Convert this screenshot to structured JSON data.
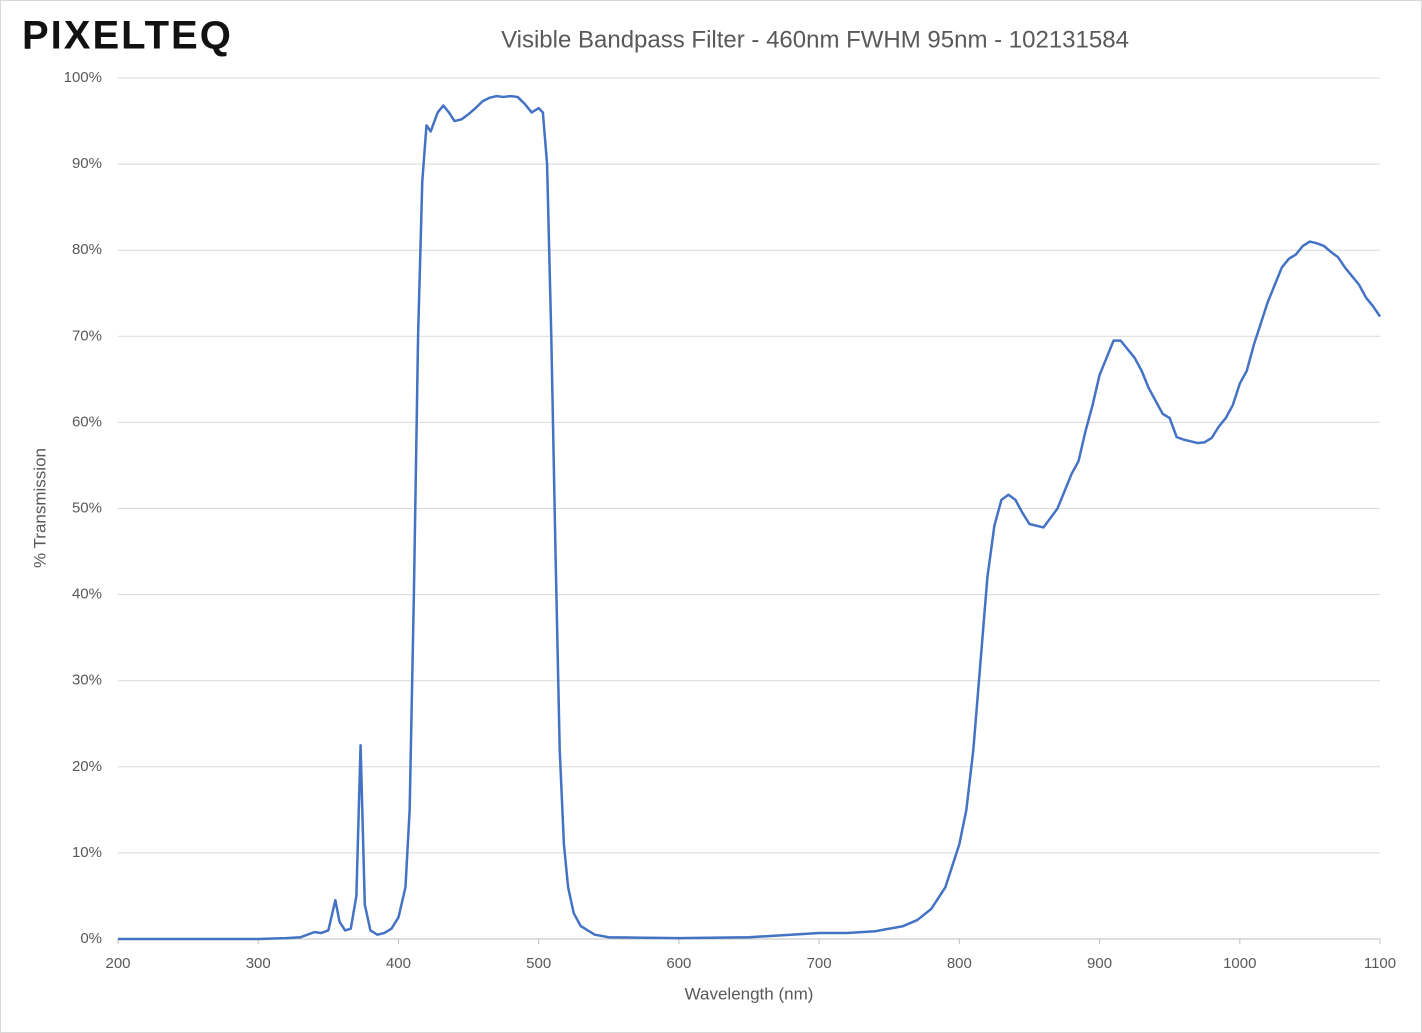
{
  "chart_data": {
    "type": "line",
    "logo": "PIXELTEQ",
    "title": "Visible Bandpass Filter - 460nm FWHM 95nm - 102131584",
    "x_label": "Wavelength (nm)",
    "y_label": "% Transmission",
    "xlim": [
      200,
      1100
    ],
    "xticks": [
      200,
      300,
      400,
      500,
      600,
      700,
      800,
      900,
      1000,
      1100
    ],
    "ylim": [
      0,
      100
    ],
    "yticks": [
      {
        "value": 0,
        "label": "0%"
      },
      {
        "value": 10,
        "label": "10%"
      },
      {
        "value": 20,
        "label": "20%"
      },
      {
        "value": 30,
        "label": "30%"
      },
      {
        "value": 40,
        "label": "40%"
      },
      {
        "value": 50,
        "label": "50%"
      },
      {
        "value": 60,
        "label": "60%"
      },
      {
        "value": 70,
        "label": "70%"
      },
      {
        "value": 80,
        "label": "80%"
      },
      {
        "value": 90,
        "label": "90%"
      },
      {
        "value": 100,
        "label": "100%"
      }
    ],
    "grid": true,
    "x": [
      200,
      250,
      300,
      320,
      330,
      340,
      345,
      350,
      355,
      358,
      362,
      366,
      370,
      373,
      376,
      380,
      385,
      390,
      395,
      400,
      405,
      408,
      411,
      414,
      417,
      420,
      423,
      428,
      432,
      436,
      440,
      445,
      450,
      455,
      460,
      465,
      470,
      475,
      480,
      485,
      490,
      495,
      500,
      503,
      506,
      509,
      512,
      515,
      518,
      521,
      525,
      530,
      540,
      550,
      600,
      650,
      680,
      700,
      720,
      740,
      760,
      770,
      780,
      790,
      800,
      805,
      810,
      815,
      820,
      825,
      830,
      835,
      840,
      845,
      850,
      860,
      870,
      880,
      885,
      890,
      895,
      900,
      905,
      910,
      915,
      920,
      925,
      930,
      935,
      940,
      945,
      950,
      955,
      960,
      965,
      970,
      975,
      980,
      985,
      990,
      995,
      1000,
      1005,
      1010,
      1015,
      1020,
      1025,
      1030,
      1035,
      1040,
      1045,
      1050,
      1055,
      1060,
      1065,
      1070,
      1075,
      1080,
      1085,
      1090,
      1095,
      1100
    ],
    "series": [
      {
        "color": "#4472c4",
        "values": [
          0,
          0,
          0,
          0.1,
          0.2,
          0.8,
          0.7,
          1.0,
          4.5,
          2,
          1,
          1.2,
          5,
          22.5,
          4,
          1,
          0.5,
          0.7,
          1.2,
          2.5,
          6,
          15,
          40,
          70,
          88,
          94.5,
          93.8,
          96,
          96.8,
          96,
          95,
          95.2,
          95.8,
          96.5,
          97.3,
          97.7,
          97.9,
          97.8,
          97.9,
          97.8,
          97,
          96,
          96.5,
          96,
          90,
          70,
          45,
          22,
          11,
          6,
          3,
          1.5,
          0.5,
          0.2,
          0.1,
          0.2,
          0.5,
          0.7,
          0.7,
          0.9,
          1.5,
          2.2,
          3.5,
          6,
          11,
          15,
          22,
          32,
          42,
          48,
          51,
          51.6,
          51,
          49.5,
          48.2,
          47.8,
          50,
          54,
          55.5,
          59,
          62,
          65.5,
          67.5,
          69.5,
          69.5,
          68.5,
          67.5,
          66,
          64,
          62.5,
          61,
          60.5,
          58.3,
          58,
          57.8,
          57.6,
          57.7,
          58.2,
          59.5,
          60.5,
          62,
          64.5,
          66,
          69,
          71.5,
          74,
          76,
          78,
          79,
          79.5,
          80.5,
          81,
          80.8,
          80.5,
          79.8,
          79.2,
          78,
          77,
          76,
          74.5,
          73.5,
          72.3
        ]
      }
    ]
  }
}
